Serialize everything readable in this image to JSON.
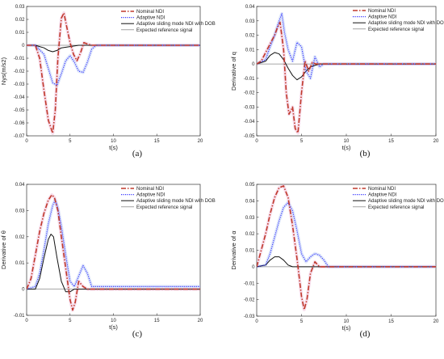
{
  "colors": {
    "nominal": "#c0392b",
    "adaptive": "#3a3aff",
    "sliding": "#111111",
    "reference": "#8a8a8a",
    "nominal_band": "#e8a0c8",
    "adaptive_band": "#a6bdf0"
  },
  "legend_entries": [
    "Nominal NDI",
    "Adaptive NDI",
    "Adaptive sliding mode NDI with DOB",
    "Expected reference signal"
  ],
  "chart_data": [
    {
      "panel": "(a)",
      "type": "line",
      "xlabel": "t(s)",
      "ylabel": "Nys(m/s2)",
      "xlim": [
        0,
        20
      ],
      "ylim": [
        -0.07,
        0.03
      ],
      "xticks": [
        "0",
        "5",
        "10",
        "15",
        "20"
      ],
      "yticks": [
        "-0.07",
        "-0.06",
        "-0.05",
        "-0.04",
        "-0.03",
        "-0.02",
        "-0.01",
        "0",
        "0.01",
        "0.02",
        "0.03"
      ],
      "legend_position": "top-right",
      "series": [
        {
          "name": "Nominal NDI",
          "style": "dashdot",
          "x": [
            0,
            1,
            1.5,
            2,
            2.5,
            3,
            3.3,
            3.6,
            4,
            4.3,
            4.6,
            5,
            5.4,
            5.8,
            6.2,
            6.6,
            7,
            7.5,
            20
          ],
          "y": [
            0,
            0,
            -0.01,
            -0.035,
            -0.058,
            -0.068,
            -0.05,
            -0.01,
            0.021,
            0.025,
            0.015,
            0.002,
            -0.007,
            -0.012,
            -0.006,
            0.002,
            0.001,
            0,
            0
          ]
        },
        {
          "name": "Adaptive NDI",
          "style": "dotted",
          "x": [
            0,
            1,
            2,
            2.5,
            3,
            3.5,
            4,
            4.5,
            5,
            5.5,
            6,
            6.5,
            7,
            7.5,
            8,
            20
          ],
          "y": [
            0,
            0,
            -0.007,
            -0.018,
            -0.029,
            -0.031,
            -0.022,
            -0.012,
            -0.008,
            -0.013,
            -0.02,
            -0.021,
            -0.013,
            -0.003,
            0,
            0
          ]
        },
        {
          "name": "Adaptive sliding mode NDI with DOB",
          "style": "solid",
          "x": [
            0,
            1,
            1.5,
            2,
            2.5,
            3,
            3.5,
            4,
            5,
            6,
            20
          ],
          "y": [
            0,
            0,
            -0.001,
            -0.002,
            -0.004,
            -0.005,
            -0.004,
            -0.002,
            -0.001,
            0,
            0
          ]
        },
        {
          "name": "Expected reference signal",
          "style": "solid",
          "x": [
            0,
            20
          ],
          "y": [
            0,
            0
          ]
        }
      ]
    },
    {
      "panel": "(b)",
      "type": "line",
      "xlabel": "t(s)",
      "ylabel": "Derivative of q",
      "xlim": [
        0,
        20
      ],
      "ylim": [
        -0.05,
        0.04
      ],
      "xticks": [
        "0",
        "5",
        "10",
        "15",
        "20"
      ],
      "yticks": [
        "-0.05",
        "-0.04",
        "-0.03",
        "-0.02",
        "-0.01",
        "0",
        "0.01",
        "0.02",
        "0.03",
        "0.04"
      ],
      "legend_position": "top-right",
      "series": [
        {
          "name": "Nominal NDI",
          "style": "dashdot",
          "x": [
            0,
            0.5,
            1,
            1.5,
            2,
            2.3,
            2.6,
            3,
            3.3,
            3.6,
            4,
            4.3,
            4.6,
            5,
            5.4,
            5.8,
            6.2,
            6.6,
            7,
            20
          ],
          "y": [
            0,
            0.002,
            0.008,
            0.014,
            0.02,
            0.025,
            0.029,
            0.01,
            -0.02,
            -0.035,
            -0.03,
            -0.045,
            -0.048,
            -0.02,
            0.002,
            -0.005,
            0.001,
            0,
            0,
            0
          ]
        },
        {
          "name": "Adaptive NDI",
          "style": "dotted",
          "x": [
            0,
            1,
            1.5,
            2,
            2.5,
            2.8,
            3.1,
            3.5,
            4,
            4.5,
            5,
            5.5,
            6,
            6.5,
            7,
            7.5,
            20
          ],
          "y": [
            0,
            0.003,
            0.012,
            0.02,
            0.03,
            0.035,
            0.022,
            0.01,
            0.002,
            0.015,
            0.012,
            -0.005,
            -0.01,
            0.005,
            -0.002,
            0,
            0
          ]
        },
        {
          "name": "Adaptive sliding mode NDI with DOB",
          "style": "solid",
          "x": [
            0,
            1,
            1.5,
            2,
            2.5,
            3,
            3.5,
            4,
            4.5,
            5,
            5.5,
            6,
            6.5,
            7,
            20
          ],
          "y": [
            0,
            0.002,
            0.006,
            0.008,
            0.007,
            0.003,
            -0.003,
            -0.008,
            -0.011,
            -0.009,
            -0.005,
            -0.002,
            -0.001,
            0,
            0
          ]
        },
        {
          "name": "Expected reference signal",
          "style": "solid",
          "x": [
            0,
            20
          ],
          "y": [
            0,
            0
          ]
        }
      ]
    },
    {
      "panel": "(c)",
      "type": "line",
      "xlabel": "t(s)",
      "ylabel": "Derivative of θ",
      "xlim": [
        0,
        20
      ],
      "ylim": [
        -0.01,
        0.04
      ],
      "xticks": [
        "0",
        "5",
        "10",
        "15",
        "20"
      ],
      "yticks": [
        "-0.01",
        "0",
        "0.01",
        "0.02",
        "0.03",
        "0.04"
      ],
      "legend_position": "top-right",
      "series": [
        {
          "name": "Nominal NDI",
          "style": "dashdot",
          "x": [
            0,
            0.5,
            1,
            1.5,
            2,
            2.5,
            2.9,
            3.2,
            3.6,
            4,
            4.5,
            5,
            5.3,
            5.6,
            6,
            6.5,
            7,
            8,
            20
          ],
          "y": [
            0,
            0.004,
            0.013,
            0.022,
            0.029,
            0.034,
            0.036,
            0.035,
            0.03,
            0.02,
            0.008,
            -0.004,
            -0.008,
            -0.005,
            0.003,
            0.001,
            0,
            0,
            0
          ]
        },
        {
          "name": "Adaptive NDI",
          "style": "dotted",
          "x": [
            0,
            1,
            1.5,
            2,
            2.5,
            3,
            3.3,
            3.6,
            4,
            4.5,
            5,
            5.5,
            6,
            6.5,
            7,
            7.5,
            8,
            20
          ],
          "y": [
            0,
            0.001,
            0.006,
            0.015,
            0.025,
            0.032,
            0.034,
            0.031,
            0.024,
            0.013,
            0.003,
            0.001,
            0.005,
            0.009,
            0.006,
            0.001,
            0.001,
            0.001
          ]
        },
        {
          "name": "Adaptive sliding mode NDI with DOB",
          "style": "solid",
          "x": [
            0,
            1,
            1.5,
            2,
            2.5,
            2.8,
            3.1,
            3.5,
            4,
            4.5,
            5,
            5.5,
            6,
            20
          ],
          "y": [
            0,
            0,
            0.004,
            0.012,
            0.019,
            0.021,
            0.02,
            0.012,
            0.003,
            -0.001,
            -0.001,
            0,
            0,
            0
          ]
        },
        {
          "name": "Expected reference signal",
          "style": "solid",
          "x": [
            0,
            20
          ],
          "y": [
            0,
            0
          ]
        }
      ]
    },
    {
      "panel": "(d)",
      "type": "line",
      "xlabel": "t(s)",
      "ylabel": "Derivative of α",
      "xlim": [
        0,
        20
      ],
      "ylim": [
        -0.03,
        0.05
      ],
      "xticks": [
        "0",
        "5",
        "10",
        "15",
        "20"
      ],
      "yticks": [
        "-0.03",
        "-0.02",
        "-0.01",
        "0",
        "0.01",
        "0.02",
        "0.03",
        "0.04",
        "0.05"
      ],
      "legend_position": "top-right",
      "series": [
        {
          "name": "Nominal NDI",
          "style": "dashdot",
          "x": [
            0,
            0.5,
            1,
            1.5,
            2,
            2.5,
            3,
            3.5,
            4,
            4.5,
            5,
            5.3,
            5.6,
            6,
            6.5,
            7,
            20
          ],
          "y": [
            0,
            0.01,
            0.02,
            0.032,
            0.042,
            0.048,
            0.049,
            0.042,
            0.025,
            0.005,
            -0.018,
            -0.026,
            -0.02,
            -0.004,
            0.003,
            0,
            0
          ]
        },
        {
          "name": "Adaptive NDI",
          "style": "dotted",
          "x": [
            0,
            1,
            1.5,
            2,
            2.5,
            3,
            3.5,
            4,
            4.5,
            5,
            5.5,
            6,
            6.5,
            7,
            7.5,
            8,
            20
          ],
          "y": [
            0,
            0.001,
            0.008,
            0.018,
            0.028,
            0.036,
            0.039,
            0.034,
            0.022,
            0.008,
            0.003,
            0.006,
            0.008,
            0.007,
            0.004,
            0,
            0
          ]
        },
        {
          "name": "Adaptive sliding mode NDI with DOB",
          "style": "solid",
          "x": [
            0,
            1,
            1.5,
            2,
            2.5,
            3,
            3.5,
            4,
            20
          ],
          "y": [
            0,
            0.001,
            0.004,
            0.006,
            0.006,
            0.004,
            0.001,
            0,
            0
          ]
        },
        {
          "name": "Expected reference signal",
          "style": "solid",
          "x": [
            0,
            20
          ],
          "y": [
            0,
            0
          ]
        }
      ]
    }
  ]
}
